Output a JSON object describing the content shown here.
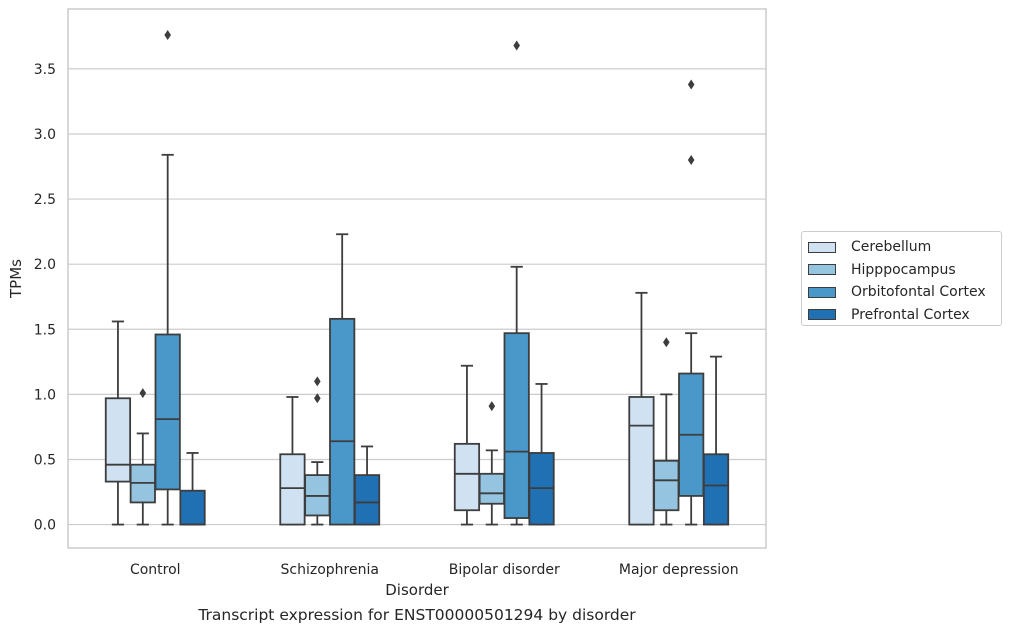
{
  "chart_data": {
    "type": "box",
    "xlabel": "Disorder",
    "ylabel": "TPMs",
    "caption": "Transcript expression for ENST00000501294 by disorder",
    "categories": [
      "Control",
      "Schizophrenia",
      "Bipolar disorder",
      "Major depression"
    ],
    "ylim": [
      -0.18,
      3.96
    ],
    "yticks": [
      "0.0",
      "0.5",
      "1.0",
      "1.5",
      "2.0",
      "2.5",
      "3.0",
      "3.5"
    ],
    "grid": "horizontal",
    "legend_position": "right",
    "series": [
      {
        "name": "Cerebellum",
        "color": "#d0e1f2",
        "boxes": [
          {
            "whisker_low": 0.0,
            "q1": 0.33,
            "median": 0.46,
            "q3": 0.97,
            "whisker_high": 1.56,
            "outliers": []
          },
          {
            "whisker_low": 0.0,
            "q1": 0.0,
            "median": 0.28,
            "q3": 0.54,
            "whisker_high": 0.98,
            "outliers": []
          },
          {
            "whisker_low": 0.0,
            "q1": 0.11,
            "median": 0.39,
            "q3": 0.62,
            "whisker_high": 1.22,
            "outliers": []
          },
          {
            "whisker_low": 0.0,
            "q1": 0.0,
            "median": 0.76,
            "q3": 0.98,
            "whisker_high": 1.78,
            "outliers": []
          }
        ]
      },
      {
        "name": "Hipppocampus",
        "color": "#94c4df",
        "boxes": [
          {
            "whisker_low": 0.0,
            "q1": 0.17,
            "median": 0.32,
            "q3": 0.46,
            "whisker_high": 0.7,
            "outliers": [
              1.01
            ]
          },
          {
            "whisker_low": 0.0,
            "q1": 0.07,
            "median": 0.22,
            "q3": 0.38,
            "whisker_high": 0.48,
            "outliers": [
              0.97,
              1.1
            ]
          },
          {
            "whisker_low": 0.0,
            "q1": 0.16,
            "median": 0.24,
            "q3": 0.39,
            "whisker_high": 0.57,
            "outliers": [
              0.91
            ]
          },
          {
            "whisker_low": 0.0,
            "q1": 0.11,
            "median": 0.34,
            "q3": 0.49,
            "whisker_high": 1.0,
            "outliers": [
              1.4
            ]
          }
        ]
      },
      {
        "name": "Orbitofontal Cortex",
        "color": "#4a98c9",
        "boxes": [
          {
            "whisker_low": 0.0,
            "q1": 0.27,
            "median": 0.81,
            "q3": 1.46,
            "whisker_high": 2.84,
            "outliers": [
              3.76
            ]
          },
          {
            "whisker_low": 0.0,
            "q1": 0.0,
            "median": 0.64,
            "q3": 1.58,
            "whisker_high": 2.23,
            "outliers": []
          },
          {
            "whisker_low": 0.0,
            "q1": 0.05,
            "median": 0.56,
            "q3": 1.47,
            "whisker_high": 1.98,
            "outliers": [
              3.68
            ]
          },
          {
            "whisker_low": 0.0,
            "q1": 0.22,
            "median": 0.69,
            "q3": 1.16,
            "whisker_high": 1.47,
            "outliers": [
              2.8,
              3.38
            ]
          }
        ]
      },
      {
        "name": "Prefrontal Cortex",
        "color": "#2070b4",
        "boxes": [
          {
            "whisker_low": 0.0,
            "q1": 0.0,
            "median": 0.0,
            "q3": 0.26,
            "whisker_high": 0.55,
            "outliers": []
          },
          {
            "whisker_low": 0.0,
            "q1": 0.0,
            "median": 0.17,
            "q3": 0.38,
            "whisker_high": 0.6,
            "outliers": []
          },
          {
            "whisker_low": 0.0,
            "q1": 0.0,
            "median": 0.28,
            "q3": 0.55,
            "whisker_high": 1.08,
            "outliers": []
          },
          {
            "whisker_low": 0.0,
            "q1": 0.0,
            "median": 0.3,
            "q3": 0.54,
            "whisker_high": 1.29,
            "outliers": []
          }
        ]
      }
    ]
  }
}
